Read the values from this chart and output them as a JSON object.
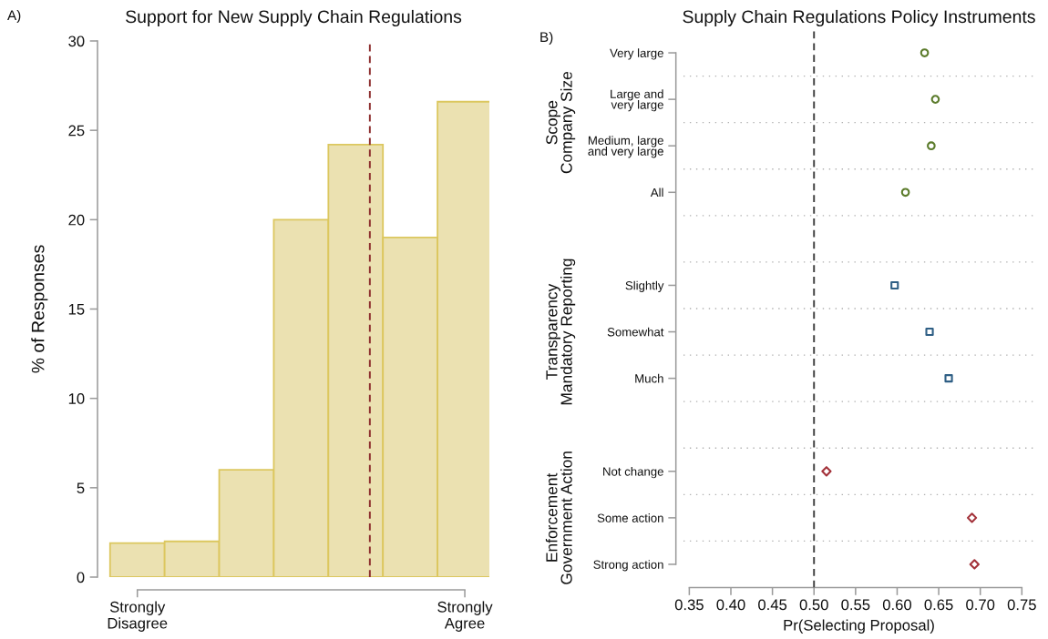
{
  "chart_data": [
    {
      "type": "bar",
      "title": "Support for New Supply Chain Regulations",
      "ylabel": "% of Responses",
      "categories": [
        "Strongly\nDisagree",
        null,
        null,
        null,
        null,
        null,
        "Strongly\nAgree"
      ],
      "values": [
        1.9,
        2.0,
        6.0,
        20.0,
        24.2,
        19.0,
        26.6
      ],
      "color": "#ebe1b1",
      "ylim": [
        0,
        30
      ],
      "yticks": [
        0,
        5,
        10,
        15,
        20,
        25,
        30
      ],
      "annotations": [
        "A)"
      ]
    },
    {
      "type": "scatter",
      "orientation": "horizontal",
      "title": "Supply Chain Regulations Policy Instruments",
      "xlabel": "Pr(Selecting Proposal)",
      "categories": [
        "Very large",
        "Large and\nvery large",
        "Medium, large\nand very large",
        "All",
        null,
        "Slightly",
        "Somewhat",
        "Much",
        null,
        "Not change",
        "Some action",
        "Strong action"
      ],
      "series": [
        {
          "color": "#5b7b2b",
          "marker": "circle",
          "values": [
            0.633,
            0.646,
            0.641,
            0.61,
            null,
            null,
            null,
            null,
            null,
            null,
            null,
            null
          ]
        },
        {
          "color": "#2f5f85",
          "marker": "square",
          "values": [
            null,
            null,
            null,
            null,
            null,
            0.597,
            0.639,
            0.662,
            null,
            null,
            null,
            null
          ]
        },
        {
          "color": "#a3323a",
          "marker": "diamond",
          "values": [
            null,
            null,
            null,
            null,
            null,
            null,
            null,
            null,
            null,
            0.515,
            0.69,
            0.693
          ]
        }
      ],
      "xlim": [
        0.343,
        0.765
      ],
      "xticks": [
        0.35,
        {
          "value": 0.4,
          "label": "0.40"
        },
        0.45,
        {
          "value": 0.5,
          "label": "0.50"
        },
        0.55,
        {
          "value": 0.6,
          "label": "0.60"
        },
        0.65,
        {
          "value": 0.7,
          "label": "0.70"
        },
        0.75
      ],
      "ref_lines": [
        {
          "axis": "x",
          "value": 0.5,
          "color": "#3f3f3f",
          "line_style": "dashed"
        }
      ],
      "grid": "y",
      "annotations": [
        "B)",
        "Scope\nCompany Size",
        "Transparency\nMandatory Reporting",
        "Enforcement\nGovernment Action"
      ]
    }
  ]
}
